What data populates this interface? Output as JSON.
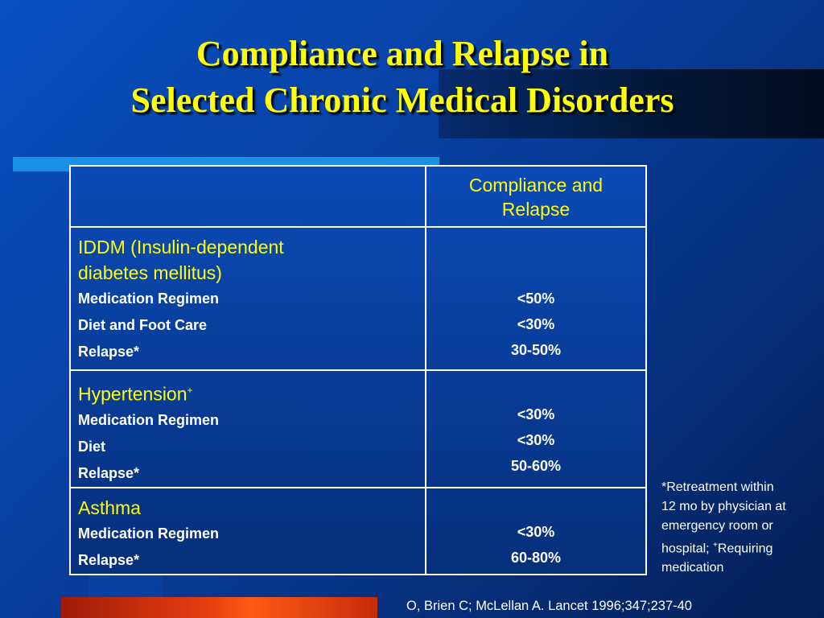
{
  "slide": {
    "title_line1": "Compliance and Relapse in",
    "title_line2": "Selected Chronic Medical Disorders"
  },
  "table": {
    "header_col2_line1": "Compliance and",
    "header_col2_line2": "Relapse",
    "sections": [
      {
        "title_line1": "IDDM (Insulin-dependent",
        "title_line2": "diabetes mellitus)",
        "rows": [
          {
            "label": "Medication Regimen",
            "value": "<50%"
          },
          {
            "label": "Diet and Foot Care",
            "value": "<30%"
          },
          {
            "label": "Relapse*",
            "value": "30-50%"
          }
        ]
      },
      {
        "title": "Hypertension",
        "title_sup": "+",
        "rows": [
          {
            "label": "Medication Regimen",
            "value": "<30%"
          },
          {
            "label": "Diet",
            "value": "<30%"
          },
          {
            "label": "Relapse*",
            "value": "50-60%"
          }
        ]
      },
      {
        "title": "Asthma",
        "rows": [
          {
            "label": "Medication Regimen",
            "value": "<30%"
          },
          {
            "label": "Relapse*",
            "value": "60-80%"
          }
        ]
      }
    ]
  },
  "footnote": {
    "line1": "*Retreatment within",
    "line2": "12 mo by physician at",
    "line3": "emergency room or",
    "line4_pre": "hospital; ",
    "line4_sup": "+",
    "line4_post": "Requiring",
    "line5": "medication"
  },
  "citation": "O, Brien C; McLellan A. Lancet 1996;347;237-40",
  "colors": {
    "title": "#ffff00",
    "background": "#0842a6",
    "accent_cyan": "#1a8fe6",
    "accent_red": "#e43c10",
    "text": "#ffffff"
  }
}
